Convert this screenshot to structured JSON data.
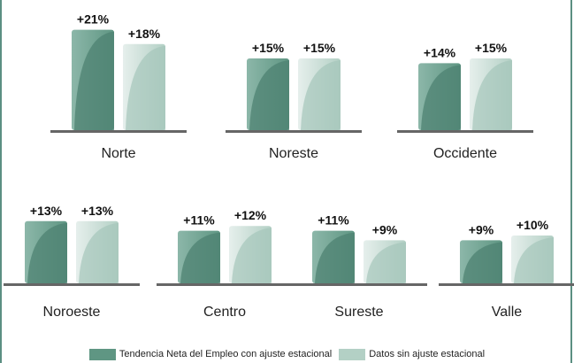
{
  "chart_data": {
    "type": "bar",
    "legend_placement": "bottom",
    "colors": {
      "sa_light": "#8cb7a9",
      "sa_dark": "#5f9683",
      "sa_gloss": "#4d8272",
      "nsa_light": "#e6efec",
      "nsa_dark": "#b3d0c5",
      "nsa_gloss": "#a5c6ba",
      "baseline": "#666666"
    },
    "series": [
      {
        "name": "Tendencia Neta del Empleo con ajuste estacional"
      },
      {
        "name": "Datos sin ajuste estacional"
      }
    ],
    "regions": [
      {
        "name": "Norte",
        "values": [
          21,
          18
        ],
        "labels": [
          "+21%",
          "+18%"
        ]
      },
      {
        "name": "Noreste",
        "values": [
          15,
          15
        ],
        "labels": [
          "+15%",
          "+15%"
        ]
      },
      {
        "name": "Occidente",
        "values": [
          14,
          15
        ],
        "labels": [
          "+14%",
          "+15%"
        ]
      },
      {
        "name": "Noroeste",
        "values": [
          13,
          13
        ],
        "labels": [
          "+13%",
          "+13%"
        ]
      },
      {
        "name": "Centro",
        "values": [
          11,
          12
        ],
        "labels": [
          "+11%",
          "+12%"
        ]
      },
      {
        "name": "Sureste",
        "values": [
          11,
          9
        ],
        "labels": [
          "+11%",
          "+9%"
        ]
      },
      {
        "name": "Valle",
        "values": [
          9,
          10
        ],
        "labels": [
          "+9%",
          "+10%"
        ]
      }
    ]
  }
}
